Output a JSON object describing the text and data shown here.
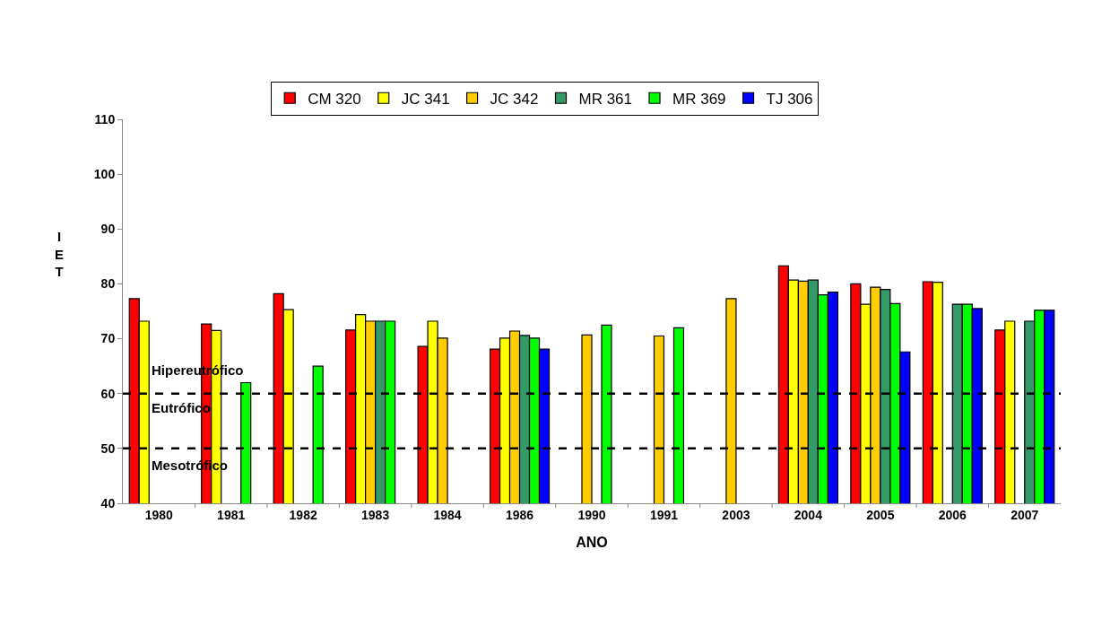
{
  "chart_data": {
    "type": "bar",
    "xlabel": "ANO",
    "ylabel": "IET",
    "categories": [
      "1980",
      "1981",
      "1982",
      "1983",
      "1984",
      "1986",
      "1990",
      "1991",
      "2003",
      "2004",
      "2005",
      "2006",
      "2007"
    ],
    "series": [
      {
        "name": "CM 320",
        "color": "#ff0000",
        "values": [
          77.3,
          72.7,
          78.2,
          71.6,
          68.6,
          68.1,
          null,
          null,
          null,
          83.3,
          80.0,
          80.4,
          71.6
        ]
      },
      {
        "name": "JC 341",
        "color": "#ffff00",
        "values": [
          73.2,
          71.5,
          75.3,
          74.4,
          73.2,
          70.1,
          null,
          null,
          null,
          80.7,
          76.3,
          80.3,
          73.2
        ]
      },
      {
        "name": "JC 342",
        "color": "#ffcc00",
        "values": [
          null,
          null,
          null,
          73.2,
          70.1,
          71.4,
          70.7,
          70.5,
          77.3,
          80.5,
          79.4,
          null,
          null
        ]
      },
      {
        "name": "MR 361",
        "color": "#339966",
        "values": [
          null,
          null,
          null,
          73.2,
          null,
          70.6,
          null,
          null,
          null,
          80.7,
          79.0,
          76.3,
          73.2
        ]
      },
      {
        "name": "MR 369",
        "color": "#00ff00",
        "values": [
          null,
          62.0,
          65.0,
          73.2,
          null,
          70.1,
          72.5,
          72.0,
          null,
          78.0,
          76.4,
          76.3,
          75.2
        ]
      },
      {
        "name": "TJ 306",
        "color": "#0000ff",
        "values": [
          null,
          null,
          null,
          null,
          null,
          68.1,
          null,
          null,
          null,
          78.5,
          67.6,
          75.5,
          75.2
        ]
      }
    ],
    "ylim": [
      40,
      110
    ],
    "yticks": [
      40,
      50,
      60,
      70,
      80,
      90,
      100,
      110
    ],
    "grid": false,
    "legend": "top",
    "ref_lines": [
      {
        "axis": "y",
        "value": 60,
        "color": "#000000",
        "line_style": "dashed"
      },
      {
        "axis": "y",
        "value": 50,
        "color": "#000000",
        "line_style": "dashed"
      }
    ],
    "annotations": [
      "Hipereutrófico",
      "Eutrófico",
      "Mesotrófico"
    ]
  }
}
